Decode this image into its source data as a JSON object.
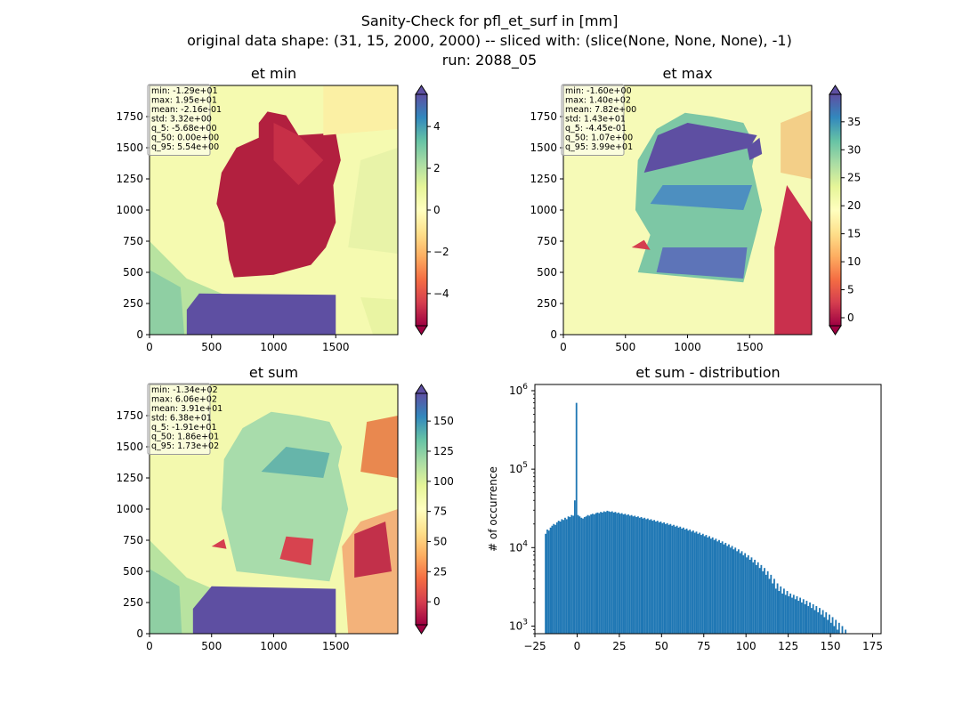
{
  "figure": {
    "title_lines": [
      "Sanity-Check for pfl_et_surf in [mm]",
      "original data shape: (31, 15, 2000, 2000) -- sliced with: (slice(None, None, None), -1)",
      "run: 2088_05"
    ]
  },
  "chart_data": [
    {
      "type": "heatmap",
      "title": "et min",
      "xlim": [
        0,
        2000
      ],
      "ylim": [
        0,
        2000
      ],
      "x_ticks": [
        "0",
        "500",
        "1000",
        "1500"
      ],
      "y_ticks": [
        "0",
        "250",
        "500",
        "750",
        "1000",
        "1250",
        "1500",
        "1750"
      ],
      "colormap": "Spectral",
      "colorbar": {
        "range": [
          -5.54,
          5.54
        ],
        "ticks": [
          "−4",
          "−2",
          "0",
          "2",
          "4"
        ],
        "extend": "both"
      },
      "stats": [
        "min: -1.29e+01",
        "max: 1.95e+01",
        "mean: -2.16e-01",
        "std: 3.32e+00",
        "q_5: -5.68e+00",
        "q_50: 0.00e+00",
        "q_95: 5.54e+00"
      ]
    },
    {
      "type": "heatmap",
      "title": "et max",
      "xlim": [
        0,
        2000
      ],
      "ylim": [
        0,
        2000
      ],
      "x_ticks": [
        "0",
        "500",
        "1000",
        "1500"
      ],
      "y_ticks": [
        "0",
        "250",
        "500",
        "750",
        "1000",
        "1250",
        "1500",
        "1750"
      ],
      "colormap": "Spectral",
      "colorbar": {
        "range": [
          -1.43,
          39.9
        ],
        "ticks": [
          "0",
          "5",
          "10",
          "15",
          "20",
          "25",
          "30",
          "35"
        ],
        "extend": "both"
      },
      "stats": [
        "min: -1.60e+00",
        "max: 1.40e+02",
        "mean: 7.82e+00",
        "std: 1.43e+01",
        "q_5: -4.45e-01",
        "q_50: 1.07e+00",
        "q_95: 3.99e+01"
      ]
    },
    {
      "type": "heatmap",
      "title": "et sum",
      "xlim": [
        0,
        2000
      ],
      "ylim": [
        0,
        2000
      ],
      "x_ticks": [
        "0",
        "500",
        "1000",
        "1500"
      ],
      "y_ticks": [
        "0",
        "250",
        "500",
        "750",
        "1000",
        "1250",
        "1500",
        "1750"
      ],
      "colormap": "Spectral",
      "colorbar": {
        "range": [
          -19.1,
          173
        ],
        "ticks": [
          "0",
          "25",
          "50",
          "75",
          "100",
          "125",
          "150"
        ],
        "extend": "both"
      },
      "stats": [
        "min: -1.34e+02",
        "max: 6.06e+02",
        "mean: 3.91e+01",
        "std: 6.38e+01",
        "q_5: -1.91e+01",
        "q_50: 1.86e+01",
        "q_95: 1.73e+02"
      ]
    },
    {
      "type": "bar",
      "title": "et sum - distribution",
      "ylabel": "# of occurrence",
      "xlim": [
        -25,
        180
      ],
      "ylim": [
        800,
        1200000
      ],
      "yscale": "log",
      "x_ticks": [
        "−25",
        "0",
        "25",
        "50",
        "75",
        "100",
        "125",
        "150",
        "175"
      ],
      "y_ticks": [
        "10^3",
        "10^4",
        "10^5",
        "10^6"
      ],
      "bar_color": "#1f77b4",
      "bins": {
        "start": -19.1,
        "width": 0.96,
        "counts": [
          15000,
          17000,
          16500,
          18000,
          19000,
          20000,
          19500,
          21000,
          22000,
          21500,
          23000,
          22500,
          24000,
          23000,
          25000,
          24500,
          26000,
          25500,
          40000,
          700000,
          26000,
          25000,
          24000,
          23500,
          24500,
          25000,
          26000,
          25500,
          26500,
          27000,
          26500,
          27500,
          28000,
          27500,
          28500,
          28000,
          29000,
          28500,
          29500,
          29000,
          28500,
          29000,
          28000,
          28500,
          27500,
          28000,
          27000,
          27500,
          26500,
          27000,
          26000,
          26500,
          25500,
          26000,
          25000,
          25500,
          24500,
          25000,
          24000,
          24500,
          23500,
          24000,
          23000,
          23500,
          22500,
          23000,
          22000,
          22500,
          21500,
          22000,
          21000,
          21500,
          20500,
          21000,
          20000,
          20500,
          19500,
          20000,
          19000,
          19500,
          18500,
          19000,
          18000,
          18500,
          17500,
          18000,
          17000,
          17500,
          16500,
          17000,
          16000,
          16500,
          15500,
          16000,
          15000,
          15500,
          14500,
          15000,
          14000,
          14500,
          13500,
          14000,
          13000,
          13500,
          12500,
          13000,
          12000,
          12500,
          11500,
          12000,
          11000,
          11500,
          10500,
          11000,
          10000,
          10500,
          9500,
          10000,
          9000,
          9500,
          8500,
          9000,
          8000,
          8500,
          7500,
          8000,
          7000,
          7500,
          6500,
          7000,
          6000,
          6500,
          5500,
          6000,
          5000,
          5500,
          4500,
          5000,
          4000,
          4500,
          3500,
          4000,
          3000,
          3500,
          2800,
          3200,
          2600,
          3000,
          2500,
          2800,
          2400,
          2600,
          2300,
          2500,
          2200,
          2400,
          2100,
          2300,
          2000,
          2200,
          1900,
          2100,
          1800,
          2000,
          1700,
          1900,
          1600,
          1800,
          1500,
          1700,
          1400,
          1600,
          1300,
          1500,
          1200,
          1400,
          1100,
          1300,
          1000,
          1200,
          900,
          1100,
          800,
          1000,
          700,
          900,
          600,
          800,
          500,
          700,
          400,
          600,
          300,
          500,
          200,
          400
        ]
      }
    }
  ]
}
